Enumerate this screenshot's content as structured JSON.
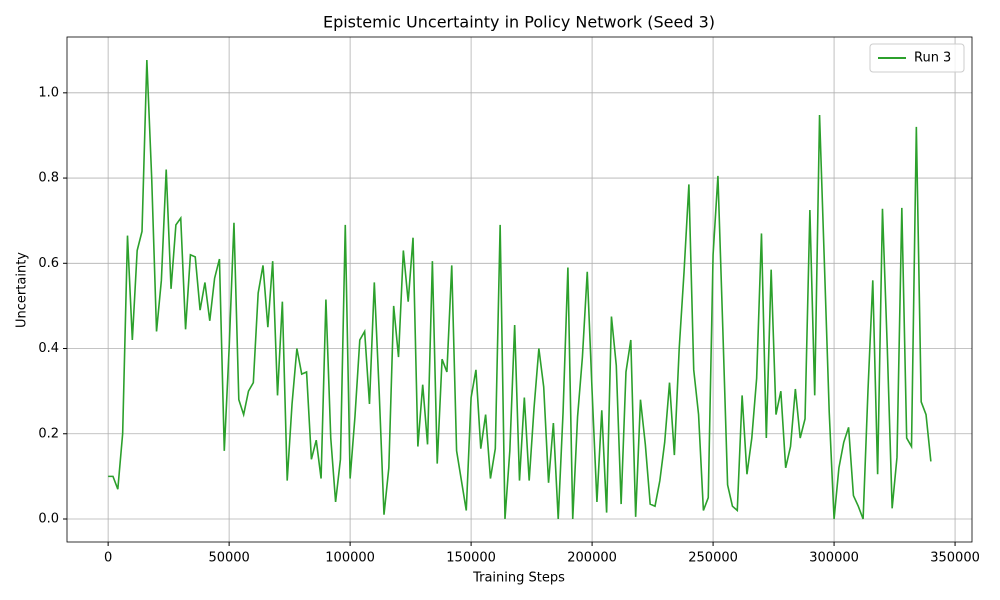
{
  "chart_data": {
    "type": "line",
    "title": "Epistemic Uncertainty in Policy Network (Seed 3)",
    "x_label": "Training Steps",
    "y_label": "Uncertainty",
    "x": [
      0,
      2000,
      4000,
      6000,
      8000,
      10000,
      12000,
      14000,
      16000,
      18000,
      20000,
      22000,
      24000,
      26000,
      28000,
      30000,
      32000,
      34000,
      36000,
      38000,
      40000,
      42000,
      44000,
      46000,
      48000,
      50000,
      52000,
      54000,
      56000,
      58000,
      60000,
      62000,
      64000,
      66000,
      68000,
      70000,
      72000,
      74000,
      76000,
      78000,
      80000,
      82000,
      84000,
      86000,
      88000,
      90000,
      92000,
      94000,
      96000,
      98000,
      100000,
      102000,
      104000,
      106000,
      108000,
      110000,
      112000,
      114000,
      116000,
      118000,
      120000,
      122000,
      124000,
      126000,
      128000,
      130000,
      132000,
      134000,
      136000,
      138000,
      140000,
      142000,
      144000,
      146000,
      148000,
      150000,
      152000,
      154000,
      156000,
      158000,
      160000,
      162000,
      164000,
      166000,
      168000,
      170000,
      172000,
      174000,
      176000,
      178000,
      180000,
      182000,
      184000,
      186000,
      188000,
      190000,
      192000,
      194000,
      196000,
      198000,
      200000,
      202000,
      204000,
      206000,
      208000,
      210000,
      212000,
      214000,
      216000,
      218000,
      220000,
      222000,
      224000,
      226000,
      228000,
      230000,
      232000,
      234000,
      236000,
      238000,
      240000,
      242000,
      244000,
      246000,
      248000,
      250000,
      252000,
      254000,
      256000,
      258000,
      260000,
      262000,
      264000,
      266000,
      268000,
      270000,
      272000,
      274000,
      276000,
      278000,
      280000,
      282000,
      284000,
      286000,
      288000,
      290000,
      292000,
      294000,
      296000,
      298000,
      300000,
      302000,
      304000,
      306000,
      308000,
      310000,
      312000,
      314000,
      316000,
      318000,
      320000,
      322000,
      324000,
      326000,
      328000,
      330000,
      332000,
      334000,
      336000,
      338000,
      340000
    ],
    "series": [
      {
        "name": "Run 3",
        "color": "#2ca02c",
        "values": [
          0.1,
          0.1,
          0.07,
          0.2,
          0.665,
          0.42,
          0.63,
          0.675,
          1.077,
          0.8,
          0.44,
          0.56,
          0.82,
          0.54,
          0.69,
          0.706,
          0.445,
          0.62,
          0.615,
          0.49,
          0.555,
          0.465,
          0.565,
          0.61,
          0.16,
          0.4,
          0.695,
          0.28,
          0.245,
          0.3,
          0.32,
          0.53,
          0.595,
          0.45,
          0.605,
          0.29,
          0.51,
          0.09,
          0.27,
          0.4,
          0.34,
          0.345,
          0.14,
          0.185,
          0.095,
          0.515,
          0.19,
          0.04,
          0.14,
          0.69,
          0.095,
          0.24,
          0.42,
          0.44,
          0.27,
          0.555,
          0.3,
          0.01,
          0.12,
          0.5,
          0.38,
          0.63,
          0.51,
          0.66,
          0.17,
          0.315,
          0.175,
          0.605,
          0.13,
          0.375,
          0.345,
          0.595,
          0.16,
          0.09,
          0.02,
          0.285,
          0.35,
          0.165,
          0.245,
          0.095,
          0.165,
          0.69,
          0.0,
          0.16,
          0.455,
          0.09,
          0.285,
          0.09,
          0.26,
          0.4,
          0.31,
          0.085,
          0.225,
          0.0,
          0.25,
          0.59,
          0.0,
          0.24,
          0.38,
          0.58,
          0.3,
          0.04,
          0.255,
          0.015,
          0.475,
          0.36,
          0.035,
          0.345,
          0.42,
          0.005,
          0.28,
          0.175,
          0.035,
          0.03,
          0.09,
          0.18,
          0.32,
          0.15,
          0.4,
          0.58,
          0.785,
          0.35,
          0.245,
          0.02,
          0.05,
          0.62,
          0.805,
          0.45,
          0.08,
          0.03,
          0.02,
          0.29,
          0.105,
          0.19,
          0.33,
          0.67,
          0.19,
          0.585,
          0.245,
          0.3,
          0.12,
          0.17,
          0.305,
          0.19,
          0.235,
          0.725,
          0.29,
          0.948,
          0.6,
          0.25,
          0.0,
          0.12,
          0.18,
          0.215,
          0.055,
          0.03,
          0.0,
          0.3,
          0.56,
          0.105,
          0.728,
          0.4,
          0.025,
          0.145,
          0.73,
          0.19,
          0.17,
          0.92,
          0.275,
          0.245,
          0.135
        ]
      }
    ],
    "xlim": [
      -17000,
      357000
    ],
    "ylim": [
      -0.054,
      1.131
    ],
    "xticks": [
      0,
      50000,
      100000,
      150000,
      200000,
      250000,
      300000,
      350000
    ],
    "yticks": [
      {
        "value": 0,
        "label": "0.0"
      },
      {
        "value": 0.2,
        "label": "0.2"
      },
      {
        "value": 0.4,
        "label": "0.4"
      },
      {
        "value": 0.6,
        "label": "0.6"
      },
      {
        "value": 0.8,
        "label": "0.8"
      },
      {
        "value": 1,
        "label": "1.0"
      }
    ],
    "grid": true,
    "legend": "upper right"
  }
}
